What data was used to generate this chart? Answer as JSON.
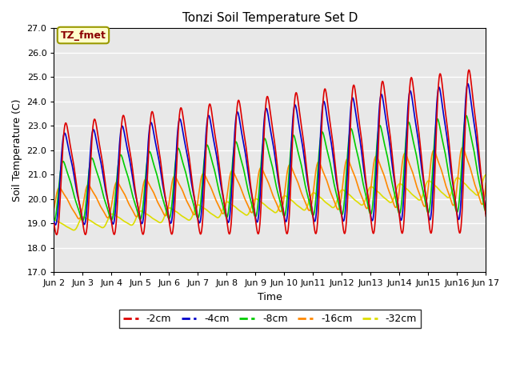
{
  "title": "Tonzi Soil Temperature Set D",
  "ylabel": "Soil Temperature (C)",
  "xlabel": "Time",
  "legend_label": "TZ_fmet",
  "ylim": [
    17.0,
    27.0
  ],
  "yticks": [
    17.0,
    18.0,
    19.0,
    20.0,
    21.0,
    22.0,
    23.0,
    24.0,
    25.0,
    26.0,
    27.0
  ],
  "xtick_labels": [
    "Jun 2",
    "Jun 3",
    "Jun 4",
    "Jun 5",
    "Jun 6",
    "Jun 7",
    "Jun 8",
    "Jun 9",
    "Jun 10",
    "Jun11",
    "Jun12",
    "Jun13",
    "Jun14",
    "Jun15",
    "Jun16",
    "Jun 17"
  ],
  "series_colors": [
    "#dd0000",
    "#0000cc",
    "#00cc00",
    "#ff8800",
    "#dddd00"
  ],
  "legend_entries": [
    "-2cm",
    "-4cm",
    "-8cm",
    "-16cm",
    "-32cm"
  ],
  "fig_facecolor": "#ffffff",
  "plot_facecolor": "#e8e8e8",
  "n_days": 15,
  "pts_per_day": 96
}
